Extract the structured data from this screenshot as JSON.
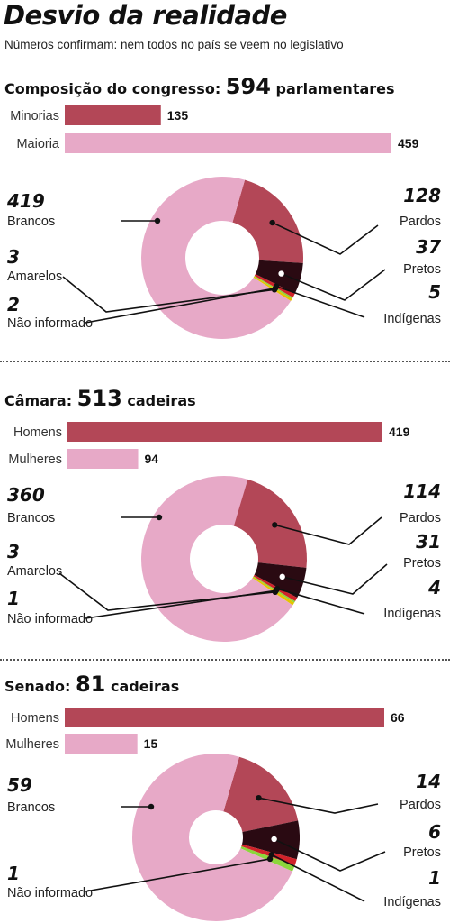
{
  "title": "Desvio da realidade",
  "subtitle": "Números confirmam: nem todos no país se veem no legislativo",
  "colors": {
    "brancos": "#e7a9c7",
    "pardos": "#b34757",
    "pretos": "#2a0a12",
    "amarelos": "#e4c400",
    "indigenas": "#d0222a",
    "nao_informado": "#8cd63c",
    "bar_dark": "#b34757",
    "bar_light": "#e7a9c7"
  },
  "sections": [
    {
      "label": "Composição do congresso:",
      "number": "594",
      "unit": "parlamentares"
    },
    {
      "label": "Câmara:",
      "number": "513",
      "unit": "cadeiras"
    },
    {
      "label": "Senado:",
      "number": "81",
      "unit": "cadeiras"
    }
  ],
  "chart_data": [
    {
      "type": "bar",
      "categories": [
        "Minorias",
        "Maioria"
      ],
      "values": [
        135,
        459
      ],
      "xlim": [
        0,
        459
      ]
    },
    {
      "type": "pie",
      "categories": [
        "Brancos",
        "Pardos",
        "Pretos",
        "Indígenas",
        "Não informado",
        "Amarelos"
      ],
      "values": [
        419,
        128,
        37,
        5,
        2,
        3
      ]
    },
    {
      "type": "bar",
      "categories": [
        "Homens",
        "Mulheres"
      ],
      "values": [
        419,
        94
      ],
      "xlim": [
        0,
        419
      ]
    },
    {
      "type": "pie",
      "categories": [
        "Brancos",
        "Pardos",
        "Pretos",
        "Indígenas",
        "Não informado",
        "Amarelos"
      ],
      "values": [
        360,
        114,
        31,
        4,
        1,
        3
      ]
    },
    {
      "type": "bar",
      "categories": [
        "Homens",
        "Mulheres"
      ],
      "values": [
        66,
        15
      ],
      "xlim": [
        0,
        66
      ]
    },
    {
      "type": "pie",
      "categories": [
        "Brancos",
        "Pardos",
        "Pretos",
        "Indígenas",
        "Não informado"
      ],
      "values": [
        59,
        14,
        6,
        1,
        1
      ]
    }
  ]
}
